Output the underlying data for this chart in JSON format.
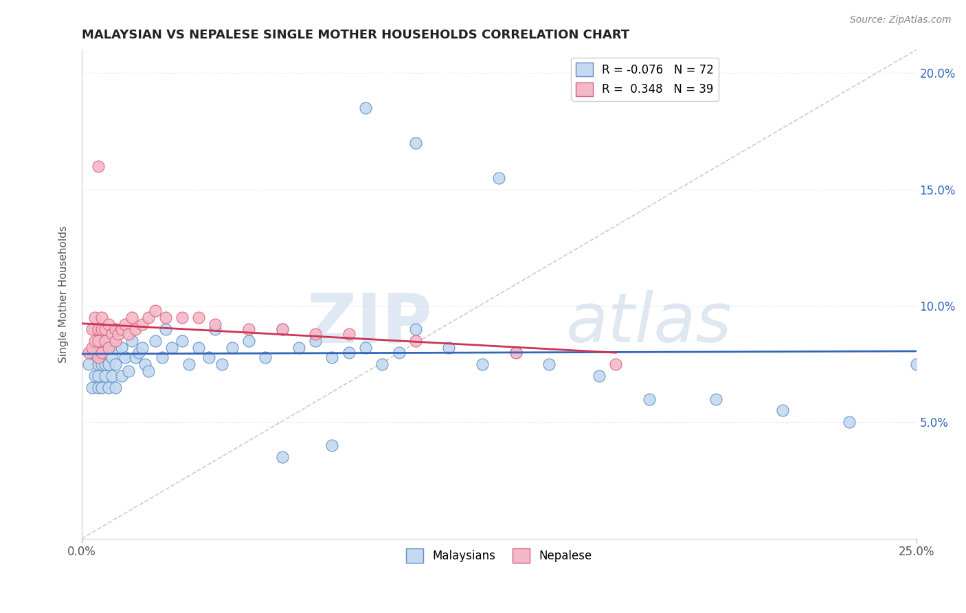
{
  "title": "MALAYSIAN VS NEPALESE SINGLE MOTHER HOUSEHOLDS CORRELATION CHART",
  "source": "Source: ZipAtlas.com",
  "ylabel": "Single Mother Households",
  "xmin": 0.0,
  "xmax": 0.25,
  "ymin": 0.0,
  "ymax": 0.21,
  "yticks": [
    0.05,
    0.1,
    0.15,
    0.2
  ],
  "ytick_labels": [
    "5.0%",
    "10.0%",
    "15.0%",
    "20.0%"
  ],
  "malaysian_color": "#c5d9f0",
  "nepalese_color": "#f5b8c8",
  "malaysian_edge": "#5b8ec4",
  "nepalese_edge": "#d9607a",
  "ref_line_color": "#cccccc",
  "trend_malaysian_color": "#3366bb",
  "trend_nepalese_color": "#cc3355",
  "watermark_zip": "ZIP",
  "watermark_atlas": "atlas",
  "legend_r_malaysian": "-0.076",
  "legend_n_malaysian": "72",
  "legend_r_nepalese": "0.348",
  "legend_n_nepalese": "39",
  "malaysian_x": [
    0.002,
    0.003,
    0.003,
    0.004,
    0.004,
    0.004,
    0.005,
    0.005,
    0.005,
    0.005,
    0.006,
    0.006,
    0.006,
    0.007,
    0.007,
    0.007,
    0.008,
    0.008,
    0.008,
    0.009,
    0.009,
    0.01,
    0.01,
    0.01,
    0.01,
    0.012,
    0.012,
    0.013,
    0.014,
    0.015,
    0.016,
    0.017,
    0.018,
    0.019,
    0.02,
    0.022,
    0.024,
    0.025,
    0.027,
    0.03,
    0.032,
    0.035,
    0.038,
    0.04,
    0.042,
    0.045,
    0.05,
    0.055,
    0.06,
    0.065,
    0.07,
    0.075,
    0.08,
    0.085,
    0.09,
    0.095,
    0.1,
    0.11,
    0.12,
    0.13,
    0.14,
    0.155,
    0.17,
    0.19,
    0.21,
    0.23,
    0.25,
    0.06,
    0.075,
    0.085,
    0.1,
    0.125
  ],
  "malaysian_y": [
    0.075,
    0.065,
    0.08,
    0.07,
    0.08,
    0.09,
    0.065,
    0.07,
    0.075,
    0.08,
    0.065,
    0.075,
    0.08,
    0.07,
    0.075,
    0.085,
    0.065,
    0.075,
    0.082,
    0.07,
    0.078,
    0.065,
    0.075,
    0.082,
    0.09,
    0.07,
    0.082,
    0.078,
    0.072,
    0.085,
    0.078,
    0.08,
    0.082,
    0.075,
    0.072,
    0.085,
    0.078,
    0.09,
    0.082,
    0.085,
    0.075,
    0.082,
    0.078,
    0.09,
    0.075,
    0.082,
    0.085,
    0.078,
    0.09,
    0.082,
    0.085,
    0.078,
    0.08,
    0.082,
    0.075,
    0.08,
    0.09,
    0.082,
    0.075,
    0.08,
    0.075,
    0.07,
    0.06,
    0.06,
    0.055,
    0.05,
    0.075,
    0.035,
    0.04,
    0.185,
    0.17,
    0.155
  ],
  "nepalese_x": [
    0.002,
    0.003,
    0.003,
    0.004,
    0.004,
    0.005,
    0.005,
    0.005,
    0.006,
    0.006,
    0.006,
    0.007,
    0.007,
    0.008,
    0.008,
    0.009,
    0.01,
    0.01,
    0.011,
    0.012,
    0.013,
    0.014,
    0.015,
    0.016,
    0.018,
    0.02,
    0.022,
    0.025,
    0.03,
    0.035,
    0.04,
    0.05,
    0.06,
    0.07,
    0.08,
    0.1,
    0.13,
    0.16,
    0.005
  ],
  "nepalese_y": [
    0.08,
    0.082,
    0.09,
    0.085,
    0.095,
    0.078,
    0.085,
    0.09,
    0.08,
    0.09,
    0.095,
    0.085,
    0.09,
    0.082,
    0.092,
    0.088,
    0.085,
    0.09,
    0.088,
    0.09,
    0.092,
    0.088,
    0.095,
    0.09,
    0.092,
    0.095,
    0.098,
    0.095,
    0.095,
    0.095,
    0.092,
    0.09,
    0.09,
    0.088,
    0.088,
    0.085,
    0.08,
    0.075,
    0.16
  ]
}
